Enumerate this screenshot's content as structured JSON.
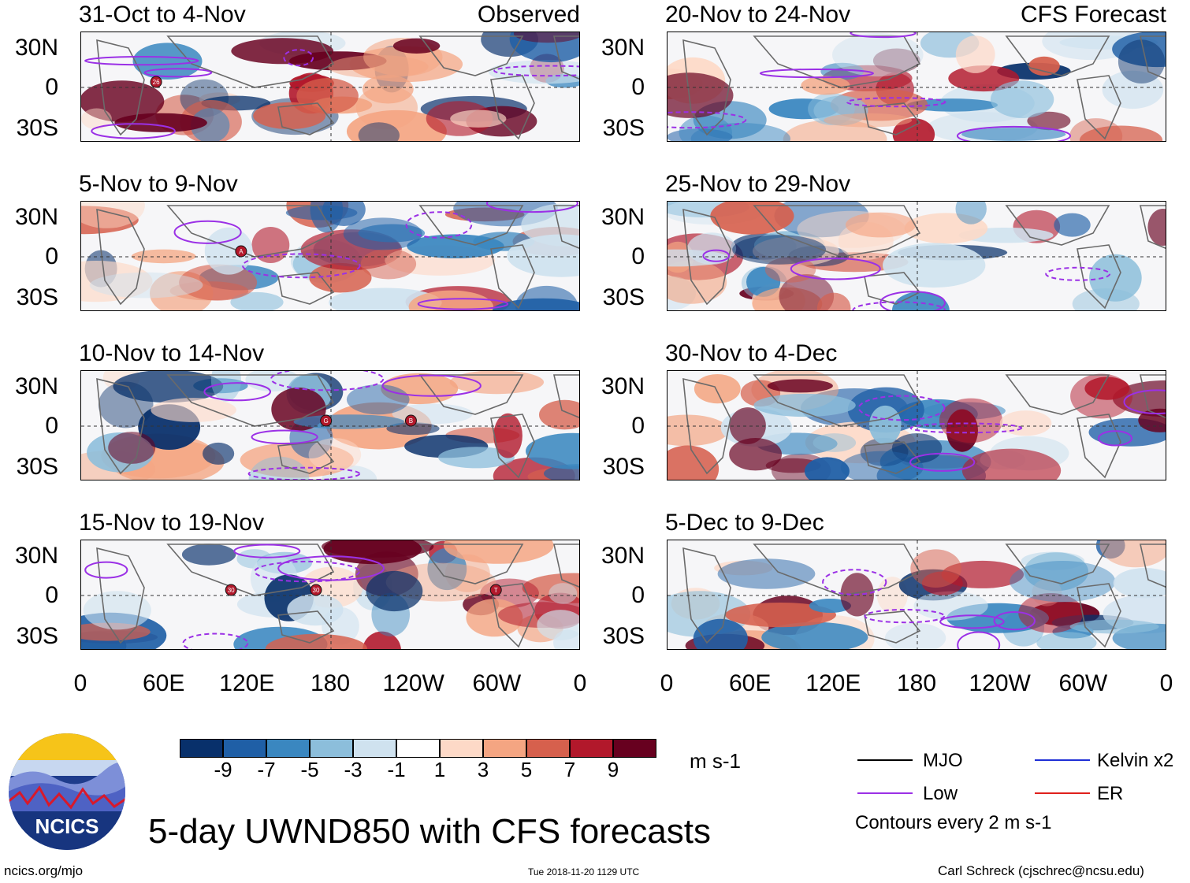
{
  "panels": [
    {
      "title": "31-Oct to 4-Nov",
      "tag": "Observed",
      "col": 0,
      "row": 0
    },
    {
      "title": "5-Nov to 9-Nov",
      "tag": "",
      "col": 0,
      "row": 1
    },
    {
      "title": "10-Nov to 14-Nov",
      "tag": "",
      "col": 0,
      "row": 2
    },
    {
      "title": "15-Nov to 19-Nov",
      "tag": "",
      "col": 0,
      "row": 3
    },
    {
      "title": "20-Nov to 24-Nov",
      "tag": "CFS Forecast",
      "col": 1,
      "row": 0
    },
    {
      "title": "25-Nov to 29-Nov",
      "tag": "",
      "col": 1,
      "row": 1
    },
    {
      "title": "30-Nov to 4-Dec",
      "tag": "",
      "col": 1,
      "row": 2
    },
    {
      "title": "5-Dec to 9-Dec",
      "tag": "",
      "col": 1,
      "row": 3
    }
  ],
  "lat_labels": [
    "30N",
    "0",
    "30S"
  ],
  "lon_labels": [
    "0",
    "60E",
    "120E",
    "180",
    "120W",
    "60W",
    "0"
  ],
  "colorbar": {
    "colors": [
      "#08306b",
      "#1f5fa6",
      "#3a87c0",
      "#8cbedb",
      "#cfe2ef",
      "#ffffff",
      "#fdd9c7",
      "#f4a582",
      "#d6604d",
      "#b2182b",
      "#67001f"
    ],
    "labels": [
      "-9",
      "-7",
      "-5",
      "-3",
      "-1",
      "1",
      "3",
      "5",
      "7",
      "9"
    ],
    "units": "m s-1"
  },
  "legend": {
    "items": [
      {
        "label": "MJO",
        "color": "#000000"
      },
      {
        "label": "Kelvin x2",
        "color": "#1f2fd6"
      },
      {
        "label": "Low",
        "color": "#9b30e6"
      },
      {
        "label": "ER",
        "color": "#e0201b"
      }
    ],
    "contour_note": "Contours every 2 m s-1"
  },
  "title": "5-day UWND850 with CFS forecasts",
  "logo_text": "NCICS",
  "footer": {
    "left": "ncics.org/mjo",
    "center": "Tue 2018-11-20 1129 UTC",
    "right": "Carl Schreck (cjschrec@ncsu.edu)"
  },
  "storm_markers": [
    {
      "panel": 0,
      "label": "26"
    },
    {
      "panel": 1,
      "label": "A"
    },
    {
      "panel": 2,
      "label": "G"
    },
    {
      "panel": 2,
      "label": "B"
    },
    {
      "panel": 3,
      "label": "T"
    },
    {
      "panel": 3,
      "label": "30"
    },
    {
      "panel": 3,
      "label": "30"
    }
  ]
}
